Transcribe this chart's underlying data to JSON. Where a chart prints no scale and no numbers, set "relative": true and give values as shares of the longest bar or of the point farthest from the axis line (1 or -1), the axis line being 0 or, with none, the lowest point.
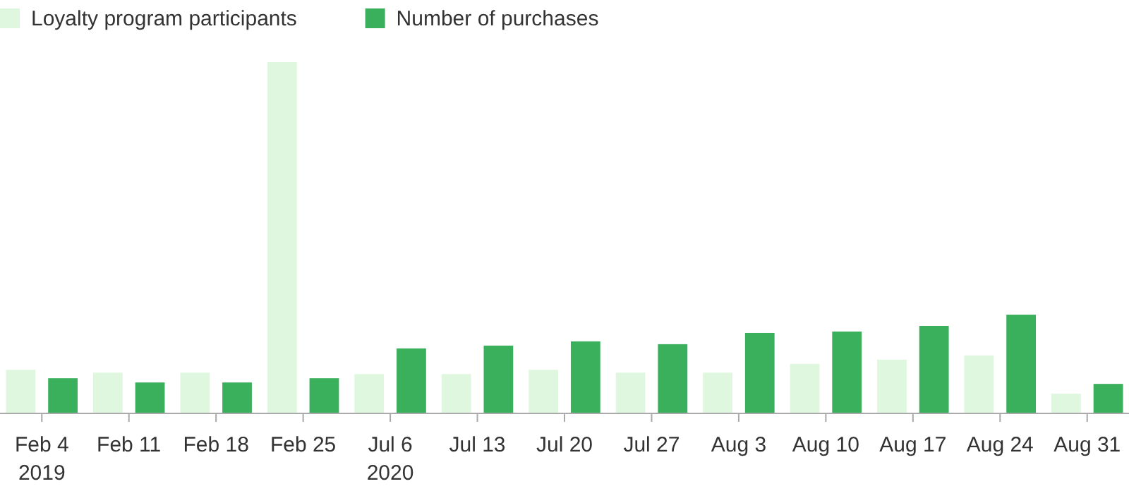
{
  "chart_data": {
    "type": "bar",
    "relative": true,
    "legend": "top left",
    "categories": [
      "Feb 4\n2019",
      "Feb 11",
      "Feb 18",
      "Feb 25",
      "Jul 6\n2020",
      "Jul 13",
      "Jul 20",
      "Jul 27",
      "Aug 3",
      "Aug 10",
      "Aug 17",
      "Aug 24",
      "Aug 31"
    ],
    "series": [
      {
        "name": "Loyalty program participants",
        "color": "#dff7df",
        "values": [
          0.124,
          0.116,
          0.116,
          1,
          0.112,
          0.112,
          0.124,
          0.116,
          0.116,
          0.141,
          0.153,
          0.165,
          0.056
        ]
      },
      {
        "name": "Number of purchases",
        "color": "#3aaf5c",
        "values": [
          0.1,
          0.088,
          0.088,
          0.1,
          0.185,
          0.193,
          0.205,
          0.197,
          0.229,
          0.233,
          0.249,
          0.281,
          0.084
        ]
      }
    ]
  }
}
